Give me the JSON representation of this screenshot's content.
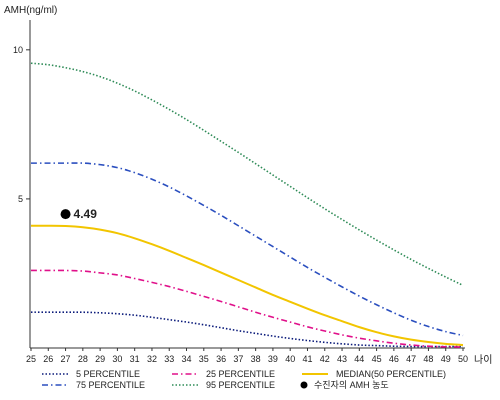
{
  "chart_data": {
    "type": "line",
    "ylabel": "AMH(ng/ml)",
    "xlabel": "나이",
    "xlim": [
      25,
      50
    ],
    "ylim": [
      0,
      11
    ],
    "x_ticks": [
      25,
      26,
      27,
      28,
      29,
      30,
      31,
      32,
      33,
      34,
      35,
      36,
      37,
      38,
      39,
      40,
      41,
      42,
      43,
      44,
      45,
      46,
      47,
      48,
      49,
      50
    ],
    "y_ticks": [
      5,
      10
    ],
    "grid": false,
    "legend_position": "bottom",
    "x": [
      25,
      26,
      27,
      28,
      29,
      30,
      31,
      32,
      33,
      34,
      35,
      36,
      37,
      38,
      39,
      40,
      41,
      42,
      43,
      44,
      45,
      46,
      47,
      48,
      49,
      50
    ],
    "series": [
      {
        "name": "5 PERCENTILE",
        "color": "#0a1a7a",
        "dash": "dotted",
        "values": [
          1.2,
          1.2,
          1.2,
          1.2,
          1.18,
          1.15,
          1.1,
          1.03,
          0.95,
          0.87,
          0.78,
          0.68,
          0.58,
          0.49,
          0.4,
          0.32,
          0.25,
          0.19,
          0.14,
          0.1,
          0.08,
          0.06,
          0.05,
          0.05,
          0.05,
          0.05
        ]
      },
      {
        "name": "25 PERCENTILE",
        "color": "#e0108a",
        "dash": "dashdot",
        "values": [
          2.6,
          2.6,
          2.6,
          2.58,
          2.52,
          2.45,
          2.33,
          2.2,
          2.06,
          1.9,
          1.73,
          1.56,
          1.38,
          1.2,
          1.03,
          0.87,
          0.71,
          0.57,
          0.44,
          0.33,
          0.24,
          0.16,
          0.1,
          0.06,
          0.04,
          0.03
        ]
      },
      {
        "name": "MEDIAN(50 PERCENTILE)",
        "color": "#f2c500",
        "dash": "solid",
        "values": [
          4.1,
          4.1,
          4.09,
          4.05,
          3.97,
          3.85,
          3.68,
          3.48,
          3.26,
          3.02,
          2.78,
          2.53,
          2.28,
          2.03,
          1.78,
          1.55,
          1.32,
          1.1,
          0.9,
          0.7,
          0.53,
          0.39,
          0.28,
          0.2,
          0.14,
          0.1
        ]
      },
      {
        "name": "75 PERCENTILE",
        "color": "#2b4fbf",
        "dash": "dashdot",
        "values": [
          6.2,
          6.2,
          6.2,
          6.2,
          6.15,
          6.05,
          5.88,
          5.66,
          5.4,
          5.1,
          4.78,
          4.45,
          4.1,
          3.75,
          3.4,
          3.05,
          2.7,
          2.37,
          2.05,
          1.74,
          1.45,
          1.18,
          0.93,
          0.72,
          0.55,
          0.42
        ]
      },
      {
        "name": "95 PERCENTILE",
        "color": "#2e8b57",
        "dash": "dotted",
        "values": [
          9.55,
          9.5,
          9.4,
          9.27,
          9.1,
          8.88,
          8.62,
          8.32,
          8.0,
          7.66,
          7.3,
          6.93,
          6.56,
          6.18,
          5.8,
          5.42,
          5.04,
          4.67,
          4.31,
          3.96,
          3.62,
          3.29,
          2.97,
          2.67,
          2.38,
          2.1
        ]
      }
    ],
    "marker": {
      "x": 27,
      "y": 4.49,
      "label": "4.49",
      "legend": "수진자의 AMH 농도",
      "color": "#000000"
    },
    "legend": [
      {
        "name": "5 PERCENTILE",
        "color": "#0a1a7a",
        "dash": "dotted"
      },
      {
        "name": "25 PERCENTILE",
        "color": "#e0108a",
        "dash": "dashdot"
      },
      {
        "name": "MEDIAN(50 PERCENTILE)",
        "color": "#f2c500",
        "dash": "solid"
      },
      {
        "name": "75 PERCENTILE",
        "color": "#2b4fbf",
        "dash": "dashdot"
      },
      {
        "name": "95 PERCENTILE",
        "color": "#2e8b57",
        "dash": "dotted"
      },
      {
        "name": "수진자의 AMH 농도",
        "color": "#000000",
        "symbol": "dot"
      }
    ]
  }
}
